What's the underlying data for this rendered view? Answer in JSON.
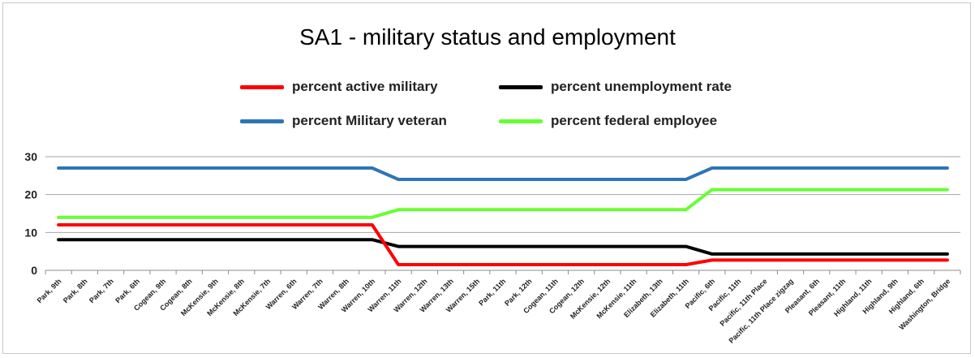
{
  "chart_data": {
    "type": "line",
    "title": "SA1 - military status and employment",
    "xlabel": "",
    "ylabel": "",
    "ylim": [
      0,
      30
    ],
    "yticks": [
      0,
      10,
      20,
      30
    ],
    "grid": true,
    "legend_position": "top",
    "categories": [
      "Park, 9th",
      "Park, 8th",
      "Park, 7th",
      "Park, 6th",
      "Cogean, 9th",
      "Cogean, 8th",
      "McKensie, 9th",
      "McKensie, 8th",
      "McKensie, 7th",
      "Warren, 6th",
      "Warren, 7th",
      "Warren, 8th",
      "Warren, 10th",
      "Warren, 11th",
      "Warren, 12th",
      "Warren, 13th",
      "Warren, 15th",
      "Park, 11th",
      "Park, 12th",
      "Cogean, 11th",
      "Cogean, 12th",
      "McKensie, 12th",
      "McKensie, 11th",
      "Elizabeth, 13th",
      "Elizabeth, 11th",
      "Pacific, 6th",
      "Pacific, 11th",
      "Pacific, 11th Place",
      "Pacific, 11th Place zigzag",
      "Pleasant, 6th",
      "Pleasant, 11th",
      "Highland, 11th",
      "Highland, 9th",
      "Highland, 6th",
      "Washington, Bridge"
    ],
    "series": [
      {
        "name": "percent active military",
        "color": "#ff0000",
        "values": [
          12,
          12,
          12,
          12,
          12,
          12,
          12,
          12,
          12,
          12,
          12,
          12,
          12,
          1.5,
          1.5,
          1.5,
          1.5,
          1.5,
          1.5,
          1.5,
          1.5,
          1.5,
          1.5,
          1.5,
          1.5,
          2.7,
          2.7,
          2.7,
          2.7,
          2.7,
          2.7,
          2.7,
          2.7,
          2.7,
          2.7
        ]
      },
      {
        "name": "percent unemployment  rate",
        "color": "#000000",
        "values": [
          8.1,
          8.1,
          8.1,
          8.1,
          8.1,
          8.1,
          8.1,
          8.1,
          8.1,
          8.1,
          8.1,
          8.1,
          8.1,
          6.3,
          6.3,
          6.3,
          6.3,
          6.3,
          6.3,
          6.3,
          6.3,
          6.3,
          6.3,
          6.3,
          6.3,
          4.3,
          4.3,
          4.3,
          4.3,
          4.3,
          4.3,
          4.3,
          4.3,
          4.3,
          4.3
        ]
      },
      {
        "name": "percent Military veteran",
        "color": "#2e75b6",
        "values": [
          27,
          27,
          27,
          27,
          27,
          27,
          27,
          27,
          27,
          27,
          27,
          27,
          27,
          24,
          24,
          24,
          24,
          24,
          24,
          24,
          24,
          24,
          24,
          24,
          24,
          27,
          27,
          27,
          27,
          27,
          27,
          27,
          27,
          27,
          27
        ]
      },
      {
        "name": "percent federal employee",
        "color": "#66ff33",
        "values": [
          14,
          14,
          14,
          14,
          14,
          14,
          14,
          14,
          14,
          14,
          14,
          14,
          14,
          16,
          16,
          16,
          16,
          16,
          16,
          16,
          16,
          16,
          16,
          16,
          16,
          21.3,
          21.3,
          21.3,
          21.3,
          21.3,
          21.3,
          21.3,
          21.3,
          21.3,
          21.3
        ]
      }
    ]
  }
}
